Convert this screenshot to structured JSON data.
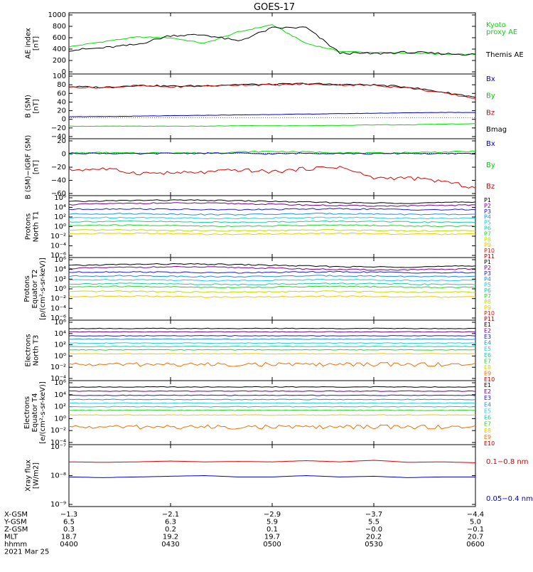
{
  "title": "GOES-17",
  "colors": {
    "black": "#000000",
    "green": "#00e000",
    "blue": "#0000cc",
    "red": "#dd0000",
    "darkred": "#aa0000"
  },
  "panels": [
    {
      "id": "ae",
      "ylabel": [
        "AE index",
        "[nT]"
      ],
      "ticks": [
        "1000",
        "800",
        "600",
        "400",
        "200",
        "0"
      ],
      "ylim": [
        0,
        1000
      ],
      "yscale": "linear",
      "legend": [
        {
          "text": "Kyoto",
          "color": "#00e000"
        },
        {
          "text": "proxy AE",
          "color": "#00e000"
        },
        {
          "text": "Themis AE",
          "color": "#000000"
        }
      ]
    },
    {
      "id": "bsm",
      "ylabel": [
        "B (SM)",
        "[nT]"
      ],
      "ticks": [
        "100",
        "80",
        "60",
        "40",
        "20",
        "0",
        "−20",
        "−40"
      ],
      "ylim": [
        -45,
        100
      ],
      "yscale": "linear",
      "legend": [
        {
          "text": "Bx",
          "color": "#0000cc"
        },
        {
          "text": "By",
          "color": "#00cc00"
        },
        {
          "text": "Bz",
          "color": "#dd0000"
        },
        {
          "text": "Bmag",
          "color": "#000000"
        }
      ]
    },
    {
      "id": "bigrf",
      "ylabel": [
        "B (SM)−IGRF (SM)",
        "[nT]"
      ],
      "ticks": [
        "20",
        "0",
        "−20",
        "−40",
        "−60"
      ],
      "ylim": [
        -65,
        20
      ],
      "yscale": "linear",
      "legend": [
        {
          "text": "Bx",
          "color": "#0000cc"
        },
        {
          "text": "By",
          "color": "#00cc00"
        },
        {
          "text": "Bz",
          "color": "#dd0000"
        }
      ]
    },
    {
      "id": "pn",
      "ylabel": [
        "Protons",
        "North T1"
      ],
      "ticks": [
        "10⁶",
        "10⁴",
        "10²",
        "10⁰",
        "10⁻²",
        "10⁻⁴",
        "10⁻⁶"
      ],
      "ylim": [
        "1e-6",
        "1e6"
      ],
      "yscale": "log",
      "legend": [
        "P1",
        "P2",
        "P3",
        "P4",
        "P5",
        "P6",
        "P7",
        "P8",
        "P9",
        "P10",
        "P11"
      ]
    },
    {
      "id": "pe",
      "ylabel": [
        "Protons",
        "Equator T2",
        "[p/(cm²-s-sr-keV)]"
      ],
      "ticks": [
        "10⁶",
        "10⁴",
        "10²",
        "10⁰",
        "10⁻²",
        "10⁻⁴",
        "10⁻⁶"
      ],
      "ylim": [
        "1e-6",
        "1e6"
      ],
      "yscale": "log",
      "legend": [
        "P1",
        "P2",
        "P3",
        "P4",
        "P5",
        "P6",
        "P7",
        "P8",
        "P9",
        "P10",
        "P11"
      ]
    },
    {
      "id": "en",
      "ylabel": [
        "Electrons",
        "North T3"
      ],
      "ticks": [
        "10⁶",
        "10⁴",
        "10²",
        "10⁰",
        "10⁻²",
        "10⁻⁴"
      ],
      "ylim": [
        "1e-4",
        "1e6"
      ],
      "yscale": "log",
      "legend": [
        "E1",
        "E2",
        "E3",
        "E4",
        "E5",
        "E6",
        "E7",
        "E8",
        "E9",
        "E10"
      ]
    },
    {
      "id": "ee",
      "ylabel": [
        "Electrons",
        "Equator T4",
        "[e/(cm²-s-sr-keV)]"
      ],
      "ticks": [
        "10⁶",
        "10⁴",
        "10²",
        "10⁰",
        "10⁻²",
        "10⁻⁴"
      ],
      "ylim": [
        "1e-4",
        "1e6"
      ],
      "yscale": "log",
      "legend": [
        "E1",
        "E2",
        "E3",
        "E4",
        "E5",
        "E6",
        "E7",
        "E8",
        "E9",
        "E10"
      ]
    },
    {
      "id": "xray",
      "ylabel": [
        "Xray flux",
        "[W/m2]"
      ],
      "ticks": [
        "10⁻⁷",
        "10⁻⁸",
        "10⁻⁹"
      ],
      "ylim": [
        "1e-9",
        "1e-7"
      ],
      "yscale": "log",
      "legend": [
        {
          "text": "0.1−0.8 nm",
          "color": "#dd0000"
        },
        {
          "text": "0.05−0.4 nm",
          "color": "#0000cc"
        }
      ]
    }
  ],
  "channel_colors": {
    "P": [
      "#000000",
      "#7a0090",
      "#1c1cd0",
      "#1f8fe0",
      "#28c8e8",
      "#20c8a0",
      "#30d030",
      "#b8e000",
      "#f0c800",
      "#d02020",
      "#b00000"
    ],
    "E": [
      "#000000",
      "#6a0090",
      "#1c1cd0",
      "#1f8fe0",
      "#28c8e8",
      "#20c8a0",
      "#30d030",
      "#f0c800",
      "#f07000",
      "#b00000"
    ]
  },
  "x_axis": {
    "rows": [
      {
        "label": "X-GSM",
        "values": [
          "−1.3",
          "−2.1",
          "−2.9",
          "−3.7",
          "−4.4"
        ]
      },
      {
        "label": "Y-GSM",
        "values": [
          "6.5",
          "6.3",
          "5.9",
          "5.5",
          "5.0"
        ]
      },
      {
        "label": "Z-GSM",
        "values": [
          "0.3",
          "0.2",
          "0.1",
          "−0.0",
          "−0.1"
        ]
      },
      {
        "label": "MLT",
        "values": [
          "18.7",
          "19.2",
          "19.7",
          "20.2",
          "20.7"
        ]
      },
      {
        "label": "hhmm",
        "values": [
          "0400",
          "0430",
          "0500",
          "0530",
          "0600"
        ]
      }
    ],
    "date": "2021 Mar 25"
  },
  "chart_data": {
    "type": "line",
    "title": "GOES-17",
    "x": [
      "0400",
      "0410",
      "0420",
      "0430",
      "0440",
      "0450",
      "0500",
      "0510",
      "0520",
      "0530",
      "0540",
      "0550",
      "0600"
    ],
    "ae_themis": [
      380,
      420,
      480,
      640,
      650,
      540,
      770,
      780,
      330,
      320,
      345,
      320,
      305
    ],
    "ae_kyoto": [
      440,
      530,
      610,
      600,
      500,
      700,
      830,
      500,
      360,
      340,
      330,
      310,
      305
    ],
    "b_sm_mag": [
      75,
      73,
      78,
      76,
      77,
      80,
      80,
      82,
      80,
      79,
      74,
      62,
      50
    ],
    "b_sm_bz": [
      74,
      72,
      77,
      74,
      76,
      79,
      79,
      81,
      79,
      78,
      72,
      60,
      47
    ],
    "b_sm_bx": [
      3,
      3,
      4,
      5,
      6,
      7,
      8,
      9,
      10,
      11,
      12,
      13,
      13
    ],
    "b_sm_by": [
      -20,
      -20,
      -20,
      -20,
      -20,
      -19,
      -19,
      -19,
      -18,
      -17,
      -17,
      -15,
      -14
    ],
    "b_igrf_bz": [
      -27,
      -25,
      -32,
      -32,
      -31,
      -27,
      -30,
      -25,
      -22,
      -40,
      -40,
      -45,
      -56
    ],
    "b_igrf_bx": [
      0,
      0,
      -1,
      0,
      0,
      0,
      -1,
      0,
      0,
      -1,
      0,
      -1,
      0
    ],
    "b_igrf_by": [
      0,
      1,
      0,
      1,
      0,
      2,
      3,
      2,
      1,
      0,
      1,
      2,
      3
    ],
    "xray_long": [
      3e-08,
      2.9e-08,
      3e-08,
      3.2e-08,
      3e-08,
      3.1e-08,
      3e-08,
      3.3e-08,
      3e-08,
      3.4e-08,
      2.9e-08,
      3e-08,
      2.8e-08
    ],
    "xray_short": [
      9e-09,
      8.5e-09,
      9e-09,
      9.5e-09,
      1e-08,
      9e-09,
      9e-09,
      1e-08,
      9e-09,
      9.5e-09,
      8.5e-09,
      9e-09,
      9e-09
    ]
  }
}
